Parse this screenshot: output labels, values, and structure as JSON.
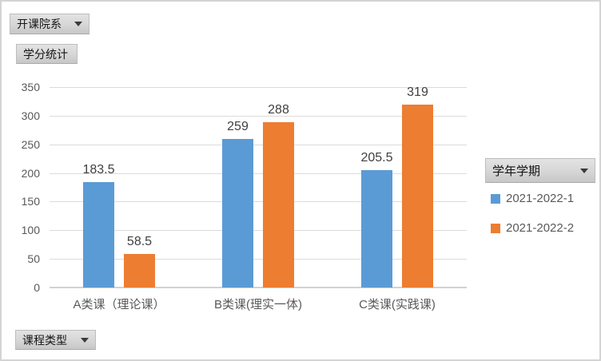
{
  "field_buttons": {
    "department": {
      "label": "开课院系"
    },
    "values": {
      "label": "学分统计"
    },
    "course_type": {
      "label": "课程类型"
    },
    "semester": {
      "label": "学年学期"
    }
  },
  "chart_data": {
    "type": "bar",
    "categories": [
      "A类课（理论课）",
      "B类课(理实一体)",
      "C类课(实践课)"
    ],
    "series": [
      {
        "name": "2021-2022-1",
        "color": "#5b9bd5",
        "values": [
          183.5,
          259,
          205.5
        ]
      },
      {
        "name": "2021-2022-2",
        "color": "#ed7d31",
        "values": [
          58.5,
          288,
          319
        ]
      }
    ],
    "ylim": [
      0,
      350
    ],
    "yticks": [
      0,
      50,
      100,
      150,
      200,
      250,
      300,
      350
    ],
    "grid": true,
    "data_labels": true,
    "legend_position": "right",
    "legend_title": "学年学期"
  },
  "colors": {
    "grid": "#dcdcdc",
    "axis_text": "#595959",
    "data_label_text": "#3f3f3f"
  }
}
